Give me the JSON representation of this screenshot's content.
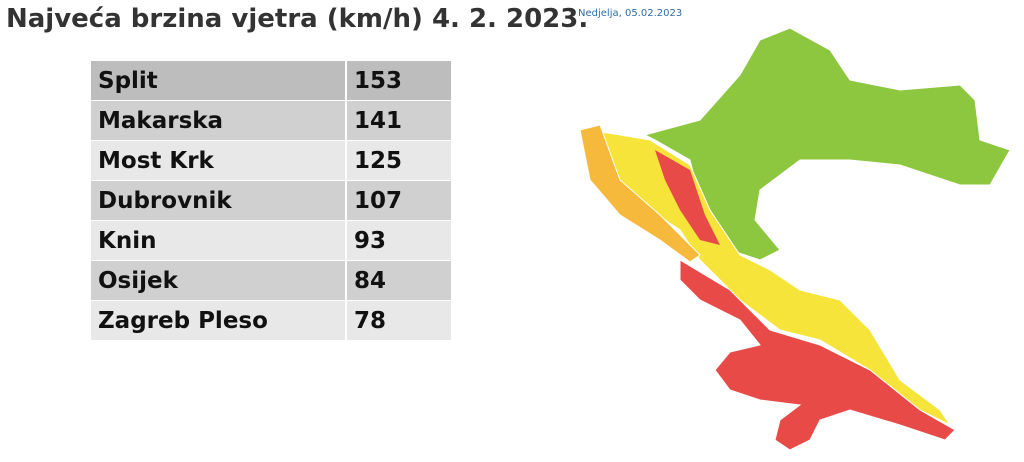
{
  "title": "Najveća brzina vjetra (km/h) 4. 2. 2023.",
  "date": "Nedjelja, 05.02.2023",
  "table": {
    "rows": [
      [
        "Split",
        153
      ],
      [
        "Makarska",
        141
      ],
      [
        "Most Krk",
        125
      ],
      [
        "Dubrovnik",
        107
      ],
      [
        "Knin",
        93
      ],
      [
        "Osijek",
        84
      ],
      [
        "Zagreb Pleso",
        78
      ]
    ]
  }
}
